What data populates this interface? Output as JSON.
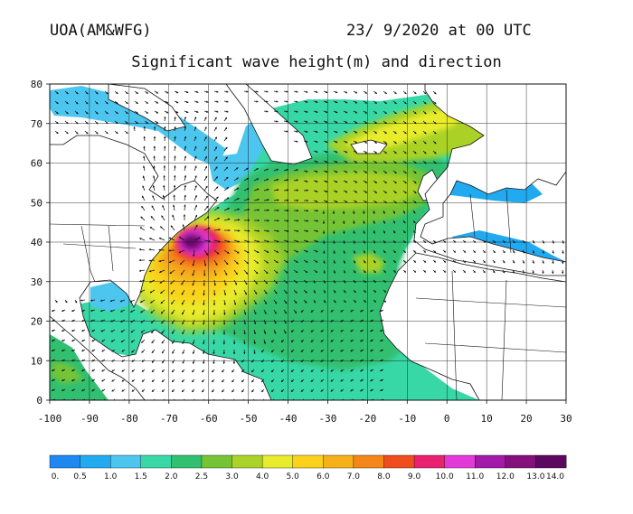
{
  "header": {
    "source": "UOA(AM&WFG)",
    "datetime": "23/ 9/2020 at 00 UTC",
    "title": "Significant wave height(m) and direction"
  },
  "map": {
    "extent": {
      "lon_min": -100,
      "lon_max": 30,
      "lat_min": 0,
      "lat_max": 80
    },
    "x_ticks": [
      "-100",
      "-90",
      "-80",
      "-70",
      "-60",
      "-50",
      "-40",
      "-30",
      "-20",
      "-10",
      "0",
      "10",
      "20",
      "30"
    ],
    "y_ticks": [
      "0",
      "10",
      "20",
      "30",
      "40",
      "50",
      "60",
      "70",
      "80"
    ],
    "storm_center": {
      "lon": -64,
      "lat": 40,
      "max_wave_height_m": 13
    }
  },
  "colorbar": {
    "labels": [
      "0.",
      "0.5",
      "1.0",
      "1.5",
      "2.0",
      "2.5",
      "3.0",
      "4.0",
      "5.0",
      "6.0",
      "7.0",
      "8.0",
      "9.0",
      "10.0",
      "11.0",
      "12.0",
      "13.0",
      "14.0"
    ],
    "colors": [
      "#1e88f0",
      "#22aaf0",
      "#4cc6ee",
      "#38d8a6",
      "#30c070",
      "#74c434",
      "#aad228",
      "#e8ec2a",
      "#fad21c",
      "#f6b01a",
      "#f5861a",
      "#ef4d1e",
      "#e82270",
      "#e23ad8",
      "#a21aa8",
      "#84107c",
      "#5c0860"
    ]
  }
}
